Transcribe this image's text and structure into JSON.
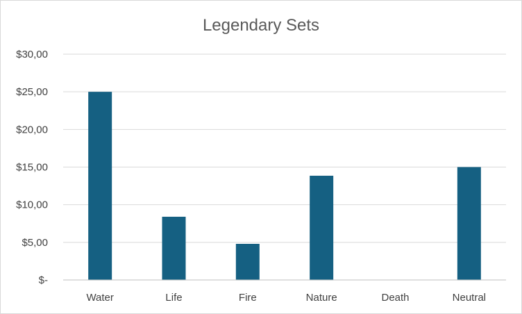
{
  "chart_data": {
    "type": "bar",
    "title": "Legendary Sets",
    "categories": [
      "Water",
      "Life",
      "Fire",
      "Nature",
      "Death",
      "Neutral"
    ],
    "values": [
      25.0,
      8.4,
      4.8,
      13.85,
      0,
      15.0
    ],
    "ylim": [
      0,
      30
    ],
    "y_ticks": [
      0,
      5,
      10,
      15,
      20,
      25,
      30
    ],
    "y_tick_labels": [
      "$-",
      "$5,00",
      "$10,00",
      "$15,00",
      "$20,00",
      "$25,00",
      "$30,00"
    ],
    "xlabel": "",
    "ylabel": "",
    "grid": true,
    "legend": "none",
    "bar_color": "#156082"
  }
}
